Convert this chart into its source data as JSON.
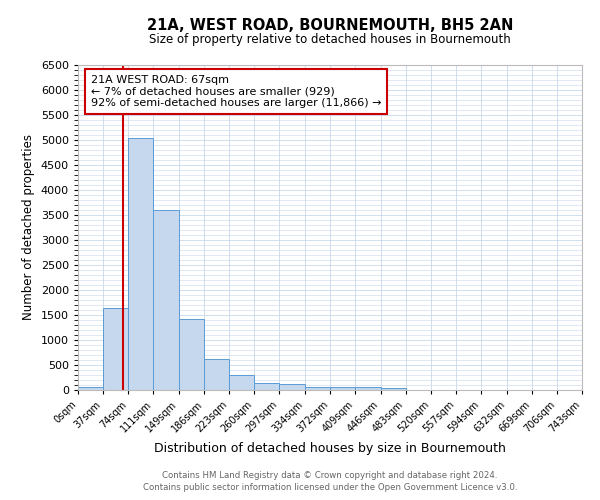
{
  "title": "21A, WEST ROAD, BOURNEMOUTH, BH5 2AN",
  "subtitle": "Size of property relative to detached houses in Bournemouth",
  "xlabel": "Distribution of detached houses by size in Bournemouth",
  "ylabel": "Number of detached properties",
  "bar_edges": [
    0,
    37,
    74,
    111,
    149,
    186,
    223,
    260,
    297,
    334,
    372,
    409,
    446,
    483,
    520,
    557,
    594,
    632,
    669,
    706,
    743
  ],
  "bar_heights": [
    70,
    1650,
    5050,
    3600,
    1420,
    615,
    310,
    150,
    115,
    65,
    55,
    55,
    50,
    5,
    5,
    5,
    5,
    5,
    5,
    5
  ],
  "bar_color": "#c5d8ed",
  "bar_edgecolor": "#5b9bd5",
  "property_line_x": 67,
  "property_line_color": "#cc0000",
  "annotation_title": "21A WEST ROAD: 67sqm",
  "annotation_line1": "← 7% of detached houses are smaller (929)",
  "annotation_line2": "92% of semi-detached houses are larger (11,866) →",
  "annotation_box_color": "#cc0000",
  "ylim": [
    0,
    6500
  ],
  "yticks": [
    0,
    500,
    1000,
    1500,
    2000,
    2500,
    3000,
    3500,
    4000,
    4500,
    5000,
    5500,
    6000,
    6500
  ],
  "xtick_labels": [
    "0sqm",
    "37sqm",
    "74sqm",
    "111sqm",
    "149sqm",
    "186sqm",
    "223sqm",
    "260sqm",
    "297sqm",
    "334sqm",
    "372sqm",
    "409sqm",
    "446sqm",
    "483sqm",
    "520sqm",
    "557sqm",
    "594sqm",
    "632sqm",
    "669sqm",
    "706sqm",
    "743sqm"
  ],
  "footnote1": "Contains HM Land Registry data © Crown copyright and database right 2024.",
  "footnote2": "Contains public sector information licensed under the Open Government Licence v3.0.",
  "background_color": "#ffffff",
  "grid_color": "#c8d8ea"
}
